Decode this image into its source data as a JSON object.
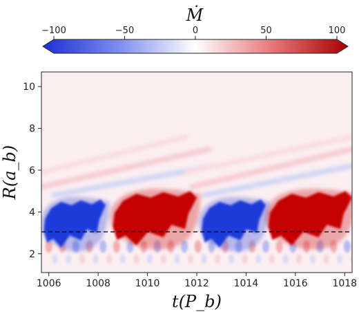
{
  "chart_data": {
    "type": "heatmap",
    "colorbar": {
      "label": "Ṁ",
      "range": [
        -100,
        100
      ],
      "ticks": [
        -100,
        -50,
        0,
        50,
        100
      ],
      "tick_labels": [
        "−100",
        "−50",
        "0",
        "50",
        "100"
      ],
      "colormap": "seismic (blue → white → red)",
      "extend": "both",
      "position": "top"
    },
    "xlabel": "t(P_b)",
    "ylabel": "R(a_b)",
    "xlim": [
      1005.7,
      1018.3
    ],
    "ylim": [
      1.1,
      10.7
    ],
    "xticks": [
      1006,
      1008,
      1010,
      1012,
      1014,
      1016,
      1018
    ],
    "yticks": [
      2,
      4,
      6,
      8,
      10
    ],
    "reference_line": {
      "y": 3.05,
      "style": "dashed",
      "color": "#000000"
    },
    "features": [
      {
        "name": "blue-lobe-1",
        "sign": -1,
        "t_start": 1005.8,
        "t_end": 1008.3,
        "r_min": 2.3,
        "r_max": 4.6
      },
      {
        "name": "red-lobe-1",
        "sign": 1,
        "t_start": 1008.6,
        "t_end": 1012.0,
        "r_min": 2.4,
        "r_max": 5.0
      },
      {
        "name": "blue-lobe-2",
        "sign": -1,
        "t_start": 1012.2,
        "t_end": 1014.8,
        "r_min": 2.3,
        "r_max": 4.6
      },
      {
        "name": "red-lobe-2",
        "sign": 1,
        "t_start": 1014.9,
        "t_end": 1018.3,
        "r_min": 2.4,
        "r_max": 5.0
      }
    ],
    "colors": {
      "negative": "#1f3bd9",
      "positive": "#c40000",
      "zero": "#ffffff",
      "background": "#fbeef1"
    }
  }
}
